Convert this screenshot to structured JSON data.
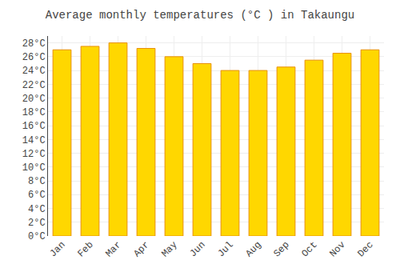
{
  "chart_data": {
    "type": "bar",
    "title": "Average monthly temperatures (°C ) in Takaungu",
    "categories": [
      "Jan",
      "Feb",
      "Mar",
      "Apr",
      "May",
      "Jun",
      "Jul",
      "Aug",
      "Sep",
      "Oct",
      "Nov",
      "Dec"
    ],
    "values": [
      27,
      27.5,
      28,
      27.2,
      26,
      25,
      24,
      24,
      24.5,
      25.5,
      26.5,
      27
    ],
    "color": "#FFD700",
    "ylim": [
      0,
      29
    ],
    "yticks": [
      {
        "value": 0,
        "label": "0°C"
      },
      {
        "value": 2,
        "label": "2°C"
      },
      {
        "value": 4,
        "label": "4°C"
      },
      {
        "value": 6,
        "label": "6°C"
      },
      {
        "value": 8,
        "label": "8°C"
      },
      {
        "value": 10,
        "label": "10°C"
      },
      {
        "value": 12,
        "label": "12°C"
      },
      {
        "value": 14,
        "label": "14°C"
      },
      {
        "value": 16,
        "label": "16°C"
      },
      {
        "value": 18,
        "label": "18°C"
      },
      {
        "value": 20,
        "label": "20°C"
      },
      {
        "value": 22,
        "label": "22°C"
      },
      {
        "value": 24,
        "label": "24°C"
      },
      {
        "value": 26,
        "label": "26°C"
      },
      {
        "value": 28,
        "label": "28°C"
      }
    ],
    "grid": true
  }
}
